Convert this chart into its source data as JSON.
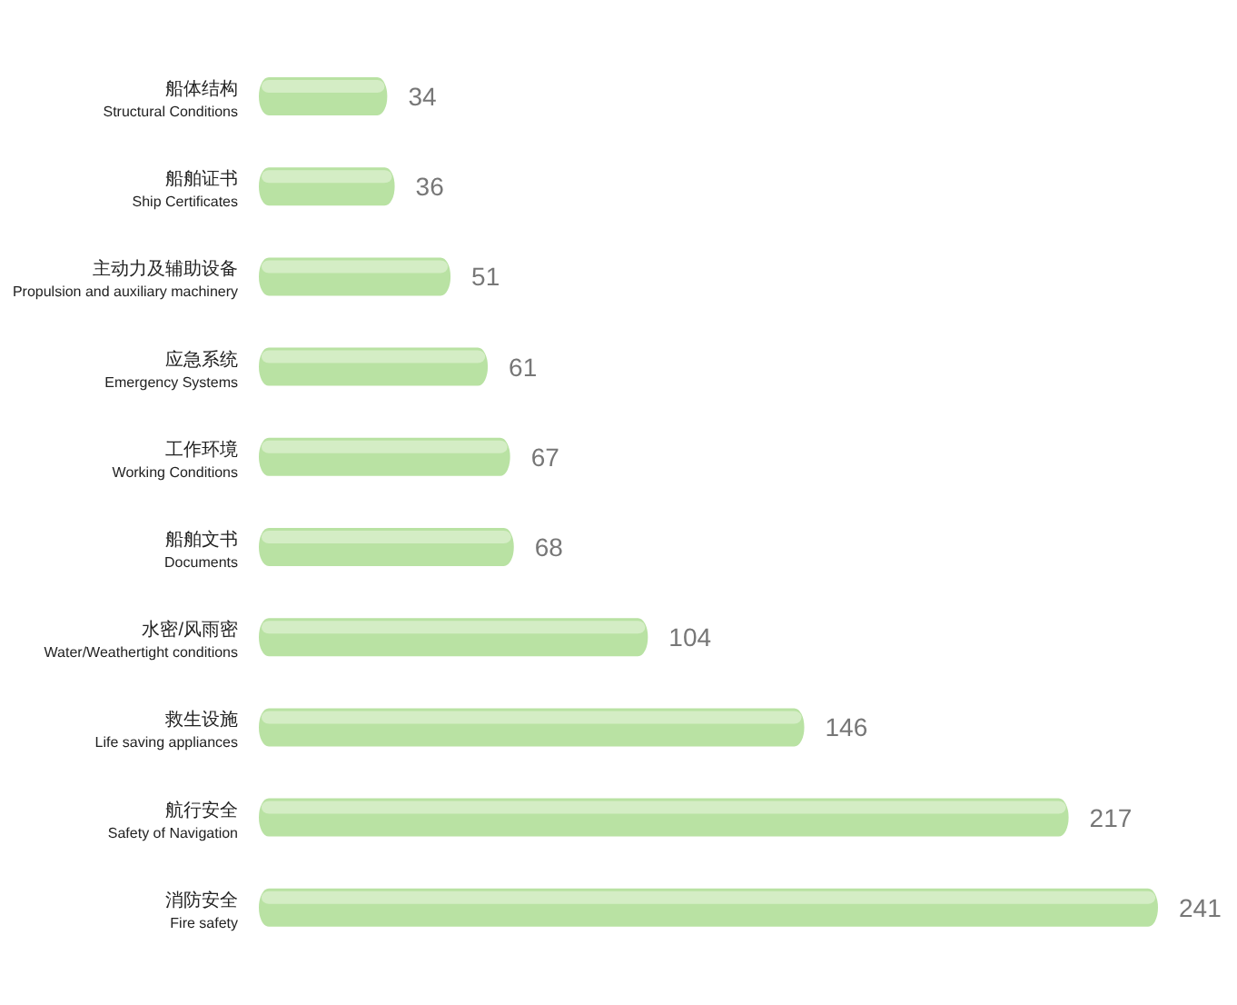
{
  "chart_data": {
    "type": "bar",
    "orientation": "horizontal",
    "categories": [
      "船体结构\nStructural Conditions",
      "船舶证书\nShip Certificates",
      "主动力及辅助设备\nPropulsion and auxiliary machinery",
      "应急系统\nEmergency Systems",
      "工作环境\nWorking Conditions",
      "船舶文书\nDocuments",
      "水密/风雨密\nWater/Weathertight conditions",
      "救生设施\nLife saving appliances",
      "航行安全\nSafety of Navigation",
      "消防安全\nFire safety"
    ],
    "values": [
      34,
      36,
      51,
      61,
      67,
      68,
      104,
      146,
      217,
      241
    ],
    "color": "#b9e2a3",
    "data_labels": true
  }
}
